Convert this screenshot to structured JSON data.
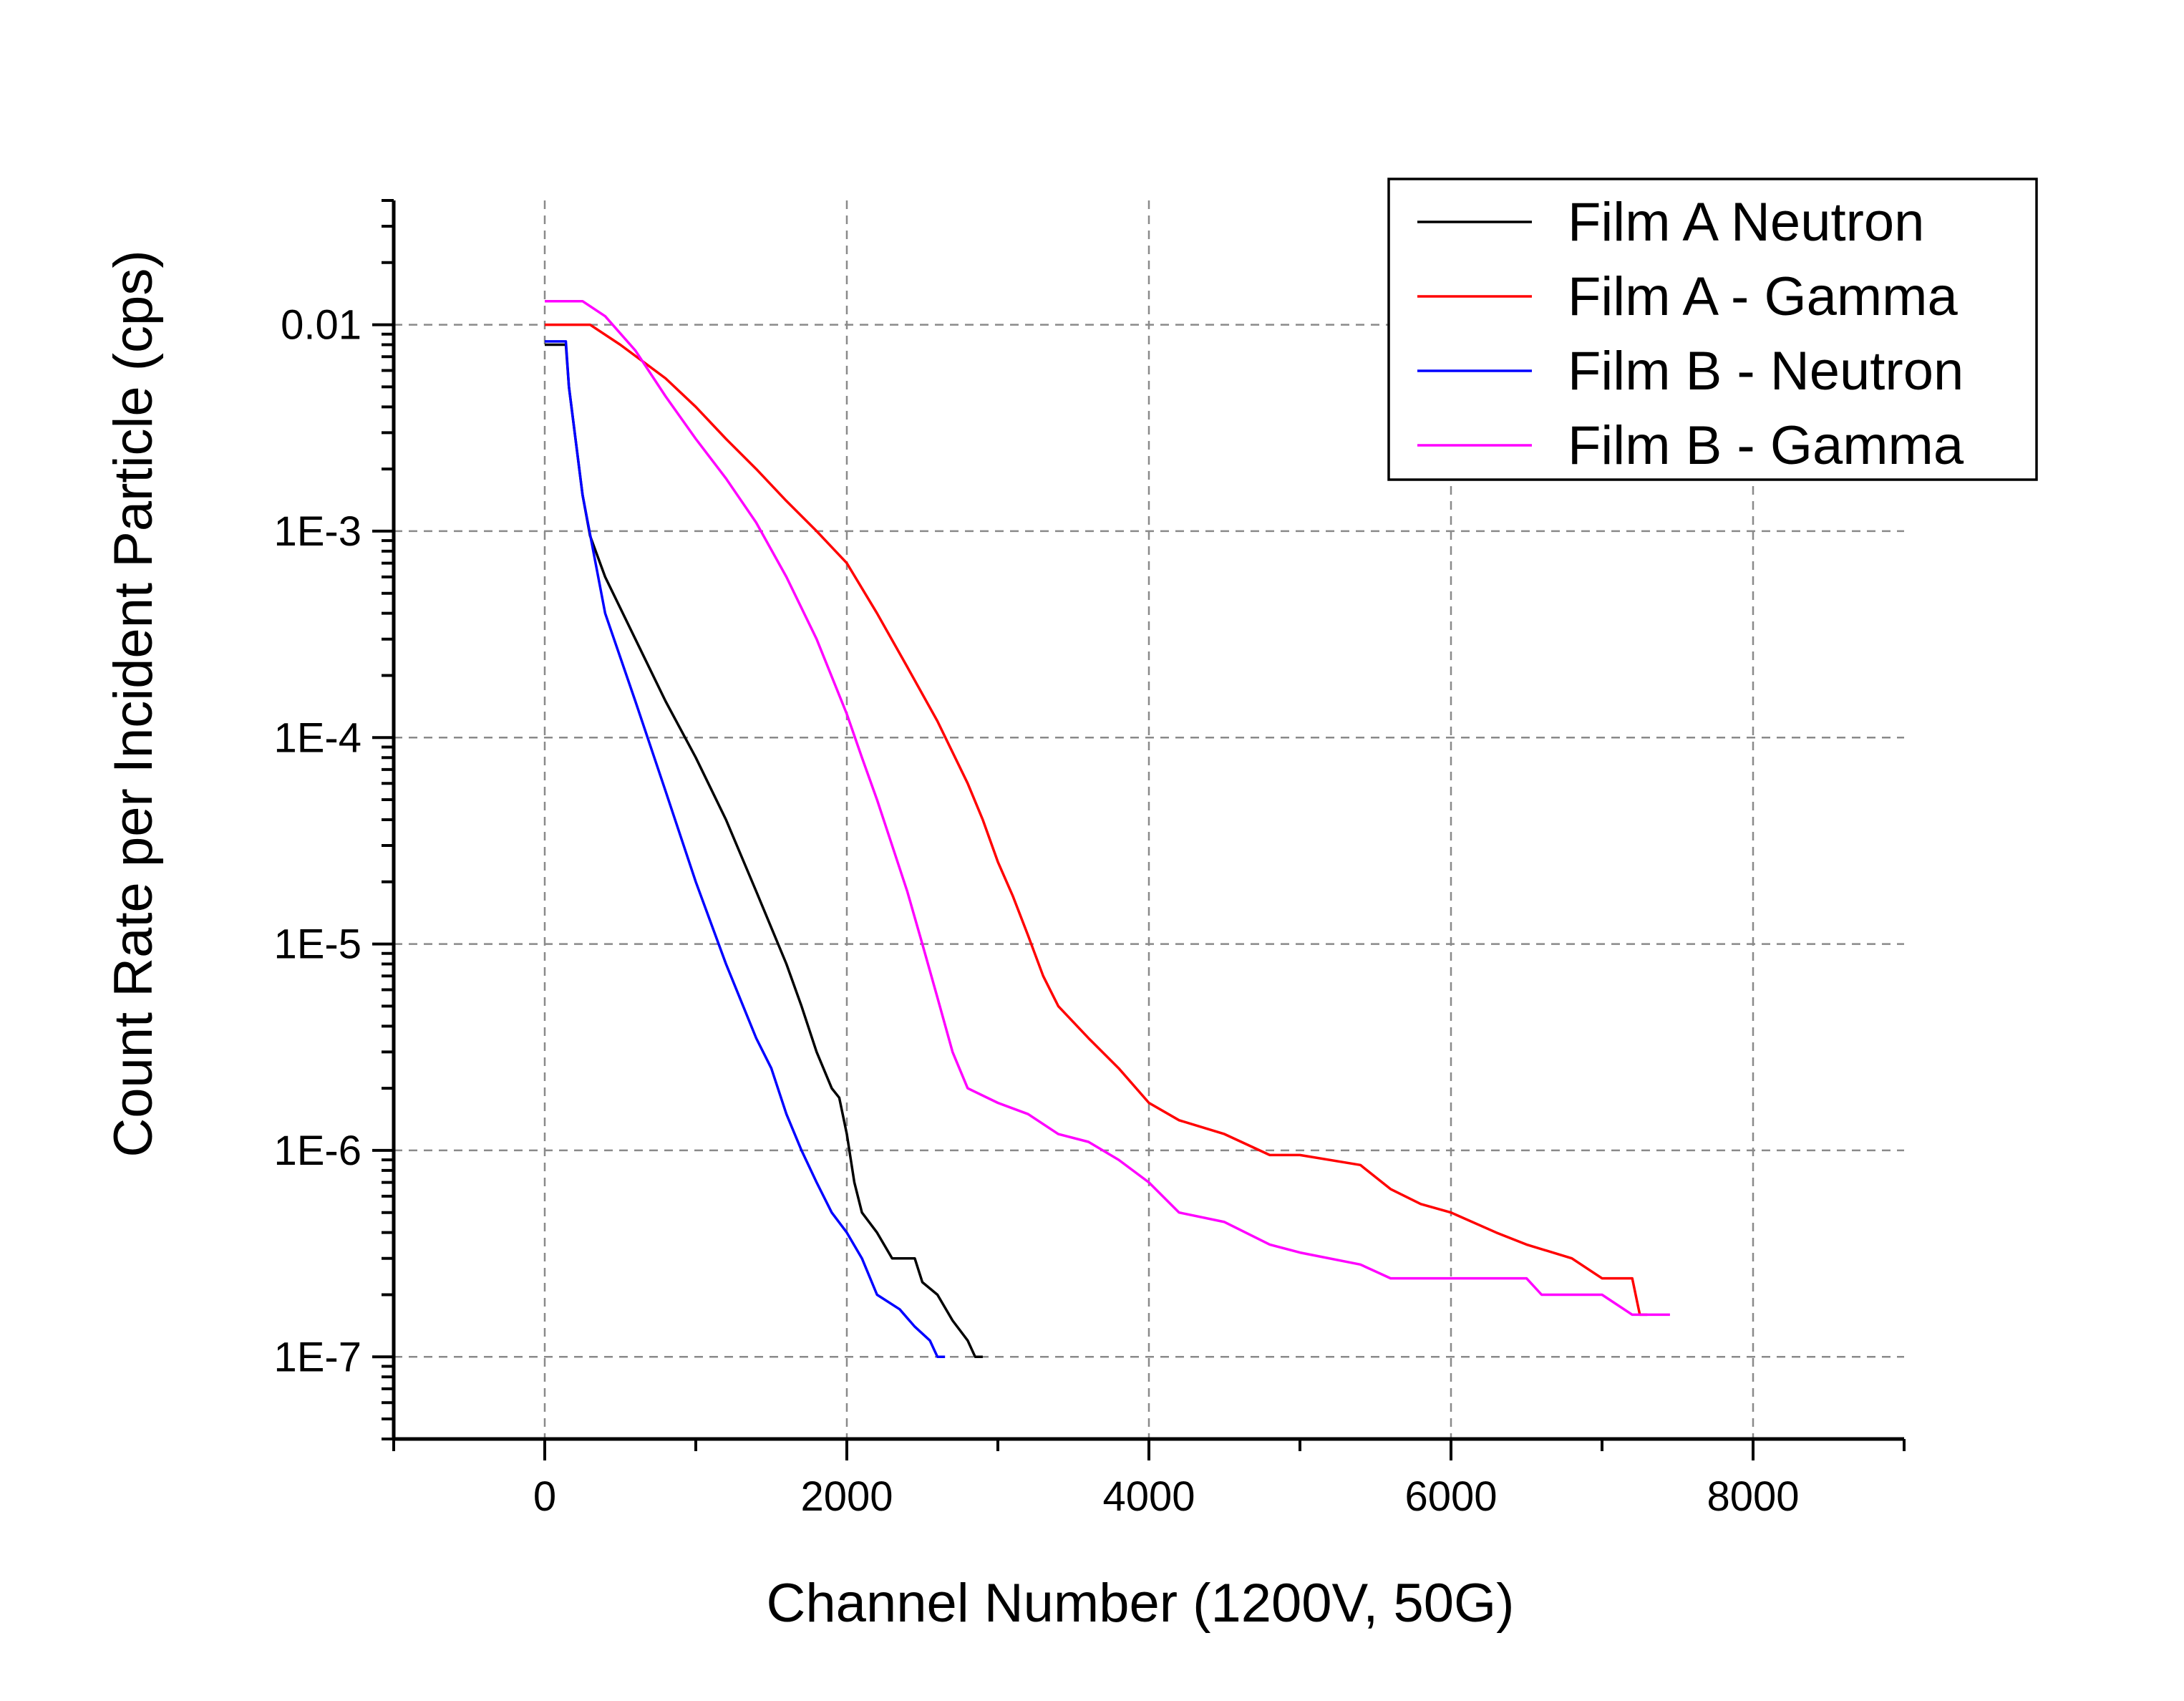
{
  "chart_data": {
    "type": "line",
    "title": "",
    "xlabel": "Channel Number (1200V, 50G)",
    "ylabel": "Count Rate per Incident Particle (cps)",
    "xlim": [
      -1000,
      9000
    ],
    "ylim": [
      4e-08,
      0.04
    ],
    "yscale": "log",
    "grid": true,
    "legend_position": "top-right",
    "x_ticks": [
      0,
      2000,
      4000,
      6000,
      8000
    ],
    "x_tick_labels": [
      "0",
      "2000",
      "4000",
      "6000",
      "8000"
    ],
    "y_ticks": [
      0.01,
      0.001,
      0.0001,
      1e-05,
      1e-06,
      1e-07
    ],
    "y_tick_labels": [
      "0.01",
      "1E-3",
      "1E-4",
      "1E-5",
      "1E-6",
      "1E-7"
    ],
    "series": [
      {
        "name": "Film A Neutron",
        "color": "#000000",
        "points": [
          [
            0,
            0.008
          ],
          [
            140,
            0.008
          ],
          [
            160,
            0.005
          ],
          [
            250,
            0.0015
          ],
          [
            300,
            0.00095
          ],
          [
            400,
            0.0006
          ],
          [
            600,
            0.0003
          ],
          [
            800,
            0.00015
          ],
          [
            1000,
            8e-05
          ],
          [
            1200,
            4e-05
          ],
          [
            1400,
            1.8e-05
          ],
          [
            1600,
            8e-06
          ],
          [
            1700,
            5e-06
          ],
          [
            1800,
            3e-06
          ],
          [
            1900,
            2e-06
          ],
          [
            1950,
            1.8e-06
          ],
          [
            2000,
            1.2e-06
          ],
          [
            2050,
            7e-07
          ],
          [
            2100,
            5e-07
          ],
          [
            2200,
            4e-07
          ],
          [
            2300,
            3e-07
          ],
          [
            2450,
            3e-07
          ],
          [
            2500,
            2.3e-07
          ],
          [
            2600,
            2e-07
          ],
          [
            2700,
            1.5e-07
          ],
          [
            2800,
            1.2e-07
          ],
          [
            2850,
            1e-07
          ],
          [
            2900,
            1e-07
          ]
        ]
      },
      {
        "name": "Film A - Gamma",
        "color": "#ff0000",
        "points": [
          [
            0,
            0.01
          ],
          [
            300,
            0.01
          ],
          [
            500,
            0.008
          ],
          [
            800,
            0.0055
          ],
          [
            1000,
            0.004
          ],
          [
            1200,
            0.0028
          ],
          [
            1400,
            0.002
          ],
          [
            1600,
            0.0014
          ],
          [
            1800,
            0.001
          ],
          [
            2000,
            0.0007
          ],
          [
            2200,
            0.0004
          ],
          [
            2400,
            0.00022
          ],
          [
            2600,
            0.00012
          ],
          [
            2800,
            6e-05
          ],
          [
            2900,
            4e-05
          ],
          [
            3000,
            2.5e-05
          ],
          [
            3100,
            1.7e-05
          ],
          [
            3200,
            1.1e-05
          ],
          [
            3300,
            7e-06
          ],
          [
            3400,
            5e-06
          ],
          [
            3600,
            3.5e-06
          ],
          [
            3800,
            2.5e-06
          ],
          [
            4000,
            1.7e-06
          ],
          [
            4200,
            1.4e-06
          ],
          [
            4500,
            1.2e-06
          ],
          [
            4800,
            9.5e-07
          ],
          [
            5000,
            9.5e-07
          ],
          [
            5400,
            8.5e-07
          ],
          [
            5600,
            6.5e-07
          ],
          [
            5800,
            5.5e-07
          ],
          [
            6000,
            5e-07
          ],
          [
            6300,
            4e-07
          ],
          [
            6500,
            3.5e-07
          ],
          [
            6800,
            3e-07
          ],
          [
            7000,
            2.4e-07
          ],
          [
            7200,
            2.4e-07
          ],
          [
            7250,
            1.6e-07
          ],
          [
            7300,
            1.6e-07
          ]
        ]
      },
      {
        "name": "Film B - Neutron",
        "color": "#0000ff",
        "points": [
          [
            0,
            0.0083
          ],
          [
            140,
            0.0083
          ],
          [
            160,
            0.005
          ],
          [
            250,
            0.0015
          ],
          [
            400,
            0.0004
          ],
          [
            600,
            0.00015
          ],
          [
            800,
            5.5e-05
          ],
          [
            1000,
            2e-05
          ],
          [
            1200,
            8e-06
          ],
          [
            1400,
            3.5e-06
          ],
          [
            1500,
            2.5e-06
          ],
          [
            1600,
            1.5e-06
          ],
          [
            1700,
            1e-06
          ],
          [
            1800,
            7e-07
          ],
          [
            1900,
            5e-07
          ],
          [
            2000,
            4e-07
          ],
          [
            2100,
            3e-07
          ],
          [
            2200,
            2e-07
          ],
          [
            2350,
            1.7e-07
          ],
          [
            2450,
            1.4e-07
          ],
          [
            2550,
            1.2e-07
          ],
          [
            2600,
            1e-07
          ],
          [
            2650,
            1e-07
          ]
        ]
      },
      {
        "name": "Film B - Gamma",
        "color": "#ff00ff",
        "points": [
          [
            0,
            0.013
          ],
          [
            250,
            0.013
          ],
          [
            400,
            0.011
          ],
          [
            600,
            0.0075
          ],
          [
            800,
            0.0045
          ],
          [
            1000,
            0.0028
          ],
          [
            1200,
            0.0018
          ],
          [
            1400,
            0.0011
          ],
          [
            1600,
            0.0006
          ],
          [
            1800,
            0.0003
          ],
          [
            2000,
            0.00013
          ],
          [
            2100,
            8e-05
          ],
          [
            2200,
            5e-05
          ],
          [
            2300,
            3e-05
          ],
          [
            2400,
            1.8e-05
          ],
          [
            2500,
            1e-05
          ],
          [
            2600,
            5.5e-06
          ],
          [
            2700,
            3e-06
          ],
          [
            2800,
            2e-06
          ],
          [
            3000,
            1.7e-06
          ],
          [
            3200,
            1.5e-06
          ],
          [
            3400,
            1.2e-06
          ],
          [
            3600,
            1.1e-06
          ],
          [
            3800,
            9e-07
          ],
          [
            4000,
            7e-07
          ],
          [
            4200,
            5e-07
          ],
          [
            4500,
            4.5e-07
          ],
          [
            4800,
            3.5e-07
          ],
          [
            5000,
            3.2e-07
          ],
          [
            5400,
            2.8e-07
          ],
          [
            5600,
            2.4e-07
          ],
          [
            6500,
            2.4e-07
          ],
          [
            6600,
            2e-07
          ],
          [
            7000,
            2e-07
          ],
          [
            7200,
            1.6e-07
          ],
          [
            7450,
            1.6e-07
          ]
        ]
      }
    ]
  }
}
